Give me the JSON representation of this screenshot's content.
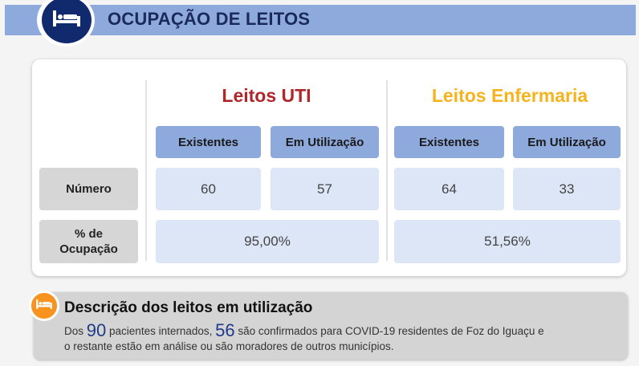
{
  "header": {
    "title": "OCUPAÇÃO DE LEITOS",
    "icon": "bed-icon",
    "band_color": "#8eaadc",
    "badge_color": "#112a6e"
  },
  "table": {
    "uti": {
      "title": "Leitos UTI",
      "title_color": "#b0272b",
      "col_existentes": "Existentes",
      "col_em_utilizacao": "Em Utilização",
      "numero_existentes": "60",
      "numero_em_utilizacao": "57",
      "ocupacao": "95,00%"
    },
    "enfermaria": {
      "title": "Leitos Enfermaria",
      "title_color": "#f5b31d",
      "col_existentes": "Existentes",
      "col_em_utilizacao": "Em Utilização",
      "numero_existentes": "64",
      "numero_em_utilizacao": "33",
      "ocupacao": "51,56%"
    },
    "row_numero": "Número",
    "row_ocupacao_line1": "% de",
    "row_ocupacao_line2": "Ocupação"
  },
  "description": {
    "icon": "bed-icon",
    "badge_color": "#f7931e",
    "title": "Descrição dos leitos em utilização",
    "text_prefix": "Dos",
    "total_internados": "90",
    "text_mid": "pacientes internados,",
    "confirmados": "56",
    "text_suffix": "são confirmados para COVID-19 residentes de Foz do Iguaçu e",
    "text_line2": "o restante estão em análise ou são moradores de outros municípios."
  }
}
